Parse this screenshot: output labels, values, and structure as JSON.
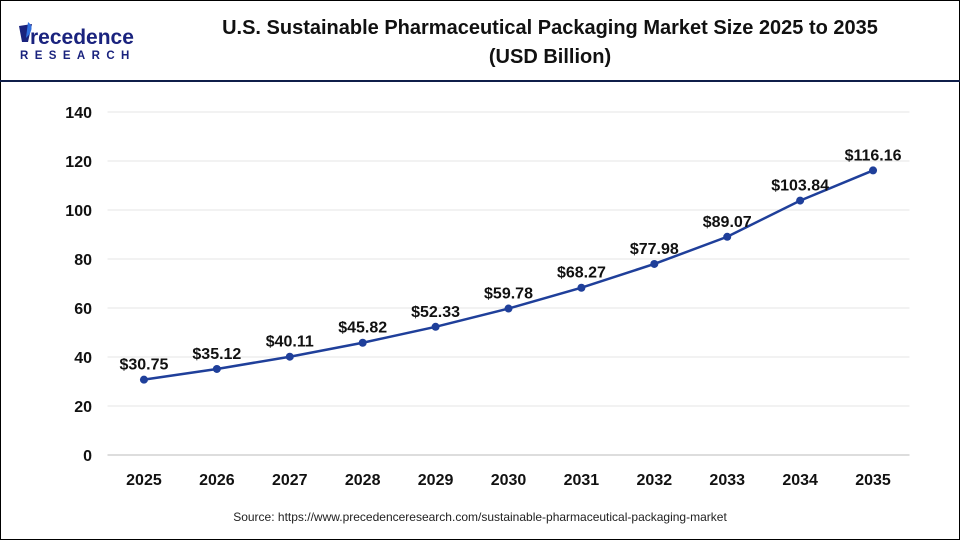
{
  "logo": {
    "line1": "Precedence",
    "line2": "RESEARCH"
  },
  "title_line1": "U.S. Sustainable Pharmaceutical Packaging Market Size 2025 to 2035",
  "title_line2": "(USD Billion)",
  "source": "Source: https://www.precedenceresearch.com/sustainable-pharmaceutical-packaging-market",
  "chart_data": {
    "type": "line",
    "categories": [
      "2025",
      "2026",
      "2027",
      "2028",
      "2029",
      "2030",
      "2031",
      "2032",
      "2033",
      "2034",
      "2035"
    ],
    "values": [
      30.75,
      35.12,
      40.11,
      45.82,
      52.33,
      59.78,
      68.27,
      77.98,
      89.07,
      103.84,
      116.16
    ],
    "data_labels": [
      "$30.75",
      "$35.12",
      "$40.11",
      "$45.82",
      "$52.33",
      "$59.78",
      "$68.27",
      "$77.98",
      "$89.07",
      "$103.84",
      "$116.16"
    ],
    "ylim": [
      0,
      140
    ],
    "yticks": [
      0,
      20,
      40,
      60,
      80,
      100,
      120,
      140
    ],
    "grid": true,
    "line_color": "#1f3f9a"
  }
}
